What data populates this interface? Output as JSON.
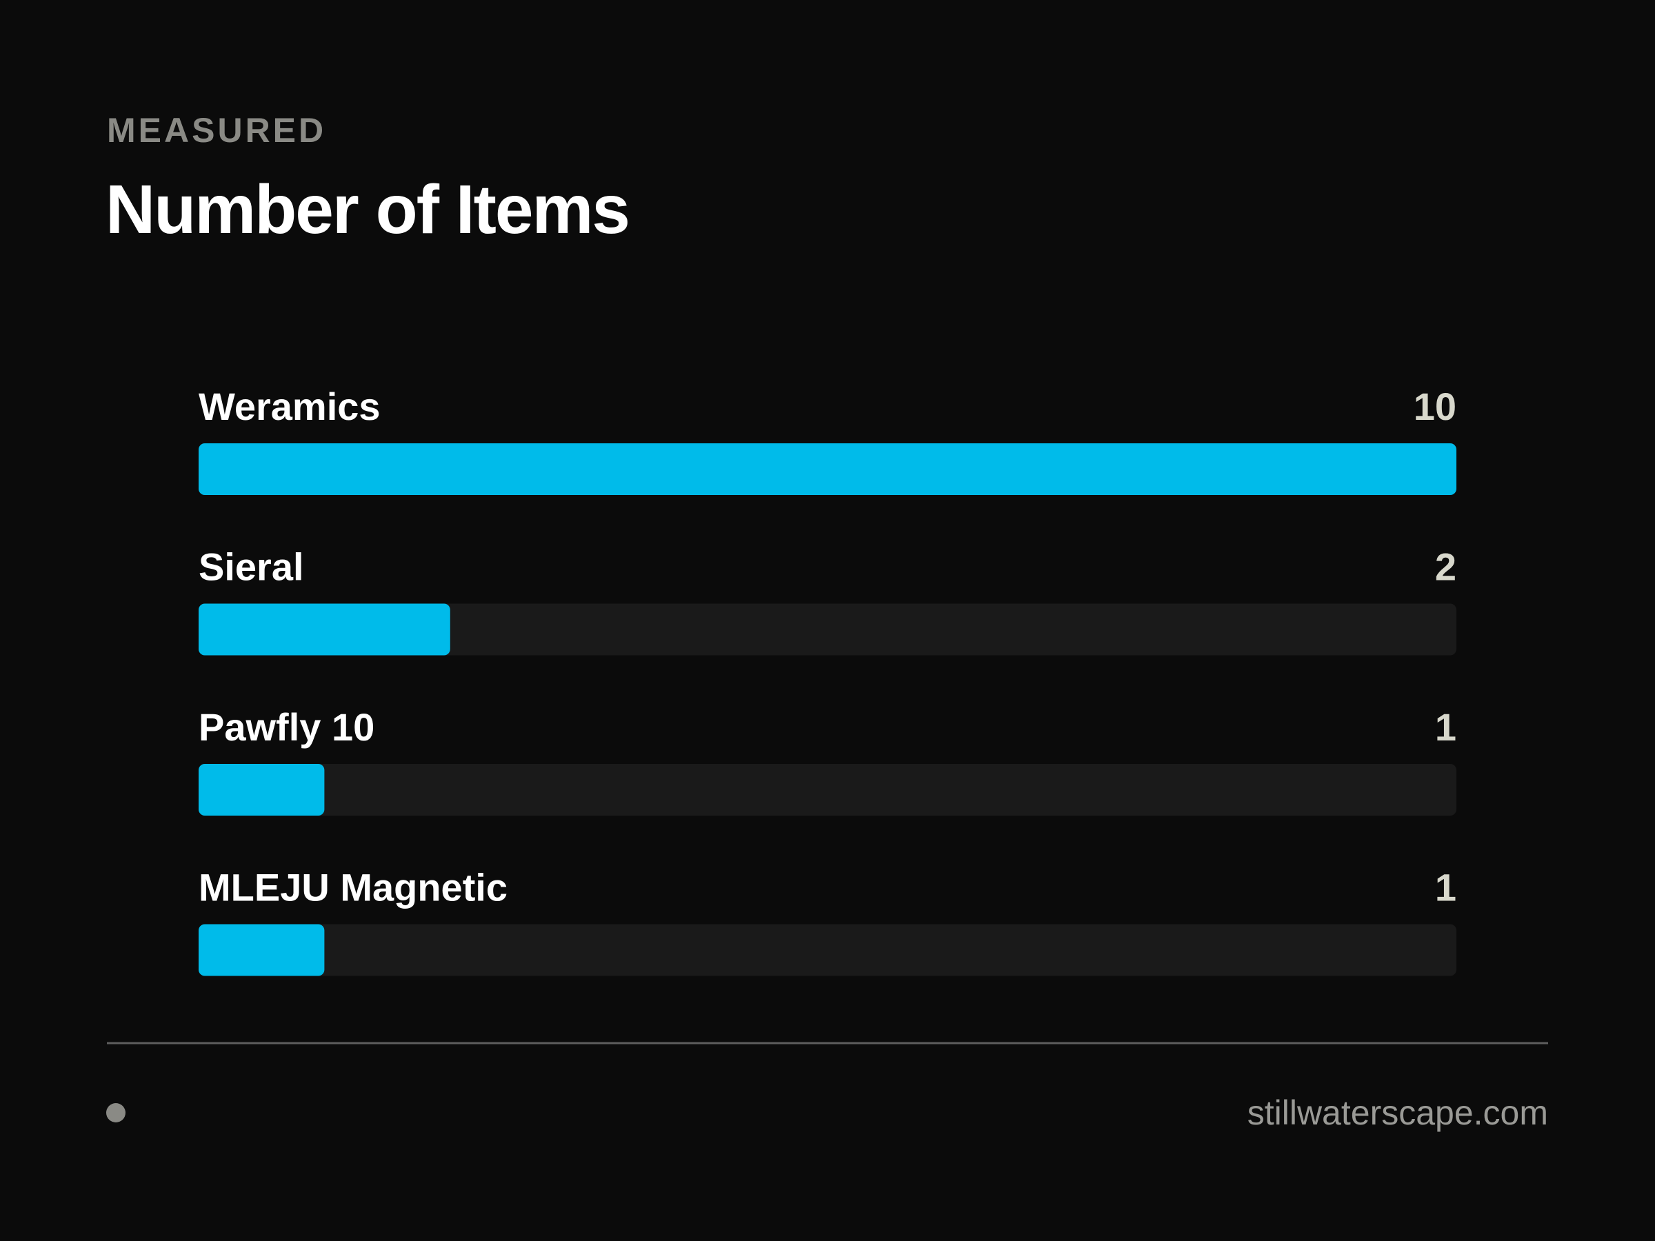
{
  "chart_data": {
    "type": "bar",
    "orientation": "horizontal",
    "subtitle": "MEASURED",
    "title": "Number of Items",
    "categories": [
      "Weramics",
      "Sieral",
      "Pawfly 10",
      "MLEJU Magnetic"
    ],
    "values": [
      10,
      2,
      1,
      1
    ],
    "color": "#00bbea",
    "xlim": [
      0,
      10
    ]
  },
  "footer": {
    "url": "stillwaterscape.com"
  }
}
